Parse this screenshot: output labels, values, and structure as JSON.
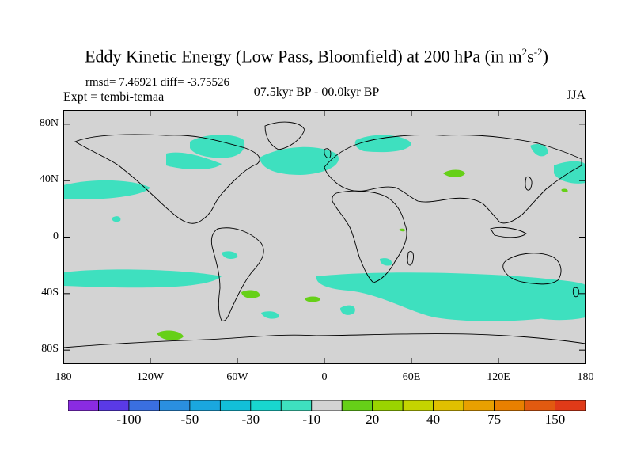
{
  "title": {
    "main": "Eddy Kinetic Energy (Low Pass, Bloomfield) at 200 hPa (in m",
    "sup1": "2",
    "mid": "s",
    "sup2": "-2",
    "end": ")"
  },
  "stats_text": "rmsd= 7.46921 diff= -3.75526",
  "expt_text": "Expt = tembi-temaa",
  "period_text": "07.5kyr BP - 00.0kyr BP",
  "season_text": "JJA",
  "map": {
    "background_color": "#d3d3d3",
    "lon_range": [
      -180,
      180
    ],
    "lat_range": [
      -90,
      90
    ],
    "y_ticks": [
      {
        "label": "80N",
        "lat": 80
      },
      {
        "label": "40N",
        "lat": 40
      },
      {
        "label": "0",
        "lat": 0
      },
      {
        "label": "40S",
        "lat": -40
      },
      {
        "label": "80S",
        "lat": -80
      }
    ],
    "x_ticks": [
      {
        "label": "180",
        "lon": -180
      },
      {
        "label": "120W",
        "lon": -120
      },
      {
        "label": "60W",
        "lon": -60
      },
      {
        "label": "0",
        "lon": 0
      },
      {
        "label": "60E",
        "lon": 60
      },
      {
        "label": "120E",
        "lon": 120
      },
      {
        "label": "180",
        "lon": 180
      }
    ]
  },
  "colorbar": {
    "colors": [
      "#8a2be2",
      "#5a3ae6",
      "#3a6fe0",
      "#2a8fe0",
      "#1aa7df",
      "#12bfd9",
      "#18d6cf",
      "#3ee0bf",
      "#d3d3d3",
      "#66d018",
      "#9ad400",
      "#c4d400",
      "#e0c000",
      "#e8a000",
      "#e88000",
      "#e25a10",
      "#e03a18"
    ],
    "labels": [
      {
        "text": "-100",
        "index": 2
      },
      {
        "text": "-50",
        "index": 4
      },
      {
        "text": "-30",
        "index": 6
      },
      {
        "text": "-10",
        "index": 8
      },
      {
        "text": "20",
        "index": 10
      },
      {
        "text": "40",
        "index": 12
      },
      {
        "text": "75",
        "index": 14
      },
      {
        "text": "150",
        "index": 16
      }
    ]
  }
}
